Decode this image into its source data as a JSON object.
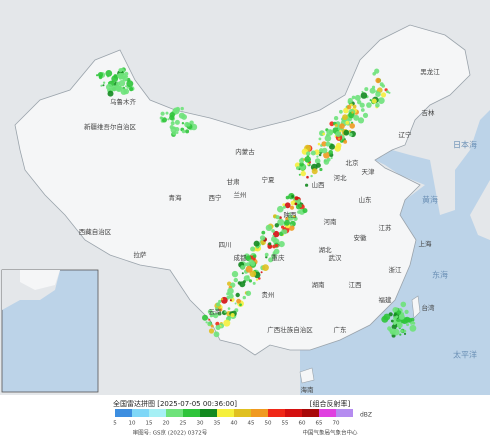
{
  "map": {
    "labels": [
      "新疆维吾尔自治区",
      "西藏自治区",
      "青海",
      "内蒙古",
      "黑龙江",
      "吉林",
      "辽宁",
      "河北",
      "山西",
      "陕西",
      "甘肃",
      "宁夏",
      "四川",
      "重庆",
      "湖北",
      "河南",
      "山东",
      "江苏",
      "安徽",
      "浙江",
      "江西",
      "湖南",
      "贵州",
      "云南",
      "广西壮族自治区",
      "广东",
      "福建",
      "台湾",
      "海南",
      "北京",
      "天津",
      "上海",
      "乌鲁木齐",
      "拉萨",
      "西宁",
      "兰州",
      "成都",
      "武汉",
      "太平洋",
      "日本海",
      "黄海",
      "东海"
    ]
  },
  "legend": {
    "title": "全国雷达拼图 [2025-07-05 00:36:00]",
    "product": "[组合反射率]",
    "unit": "dBZ",
    "ticks": [
      5,
      10,
      15,
      20,
      25,
      30,
      35,
      40,
      45,
      50,
      55,
      60,
      65,
      70
    ],
    "colors": [
      "#3d8ee0",
      "#7fd7f7",
      "#a6f0f5",
      "#6ee27a",
      "#2fc43a",
      "#138a1f",
      "#f5f03c",
      "#e0c020",
      "#f09a20",
      "#f02818",
      "#d41010",
      "#a80808",
      "#e040e0",
      "#b58cf0"
    ]
  },
  "footer": {
    "approval": "审图号: GS京 (2022) 0372号",
    "source": "中国气象局气象台中心"
  }
}
